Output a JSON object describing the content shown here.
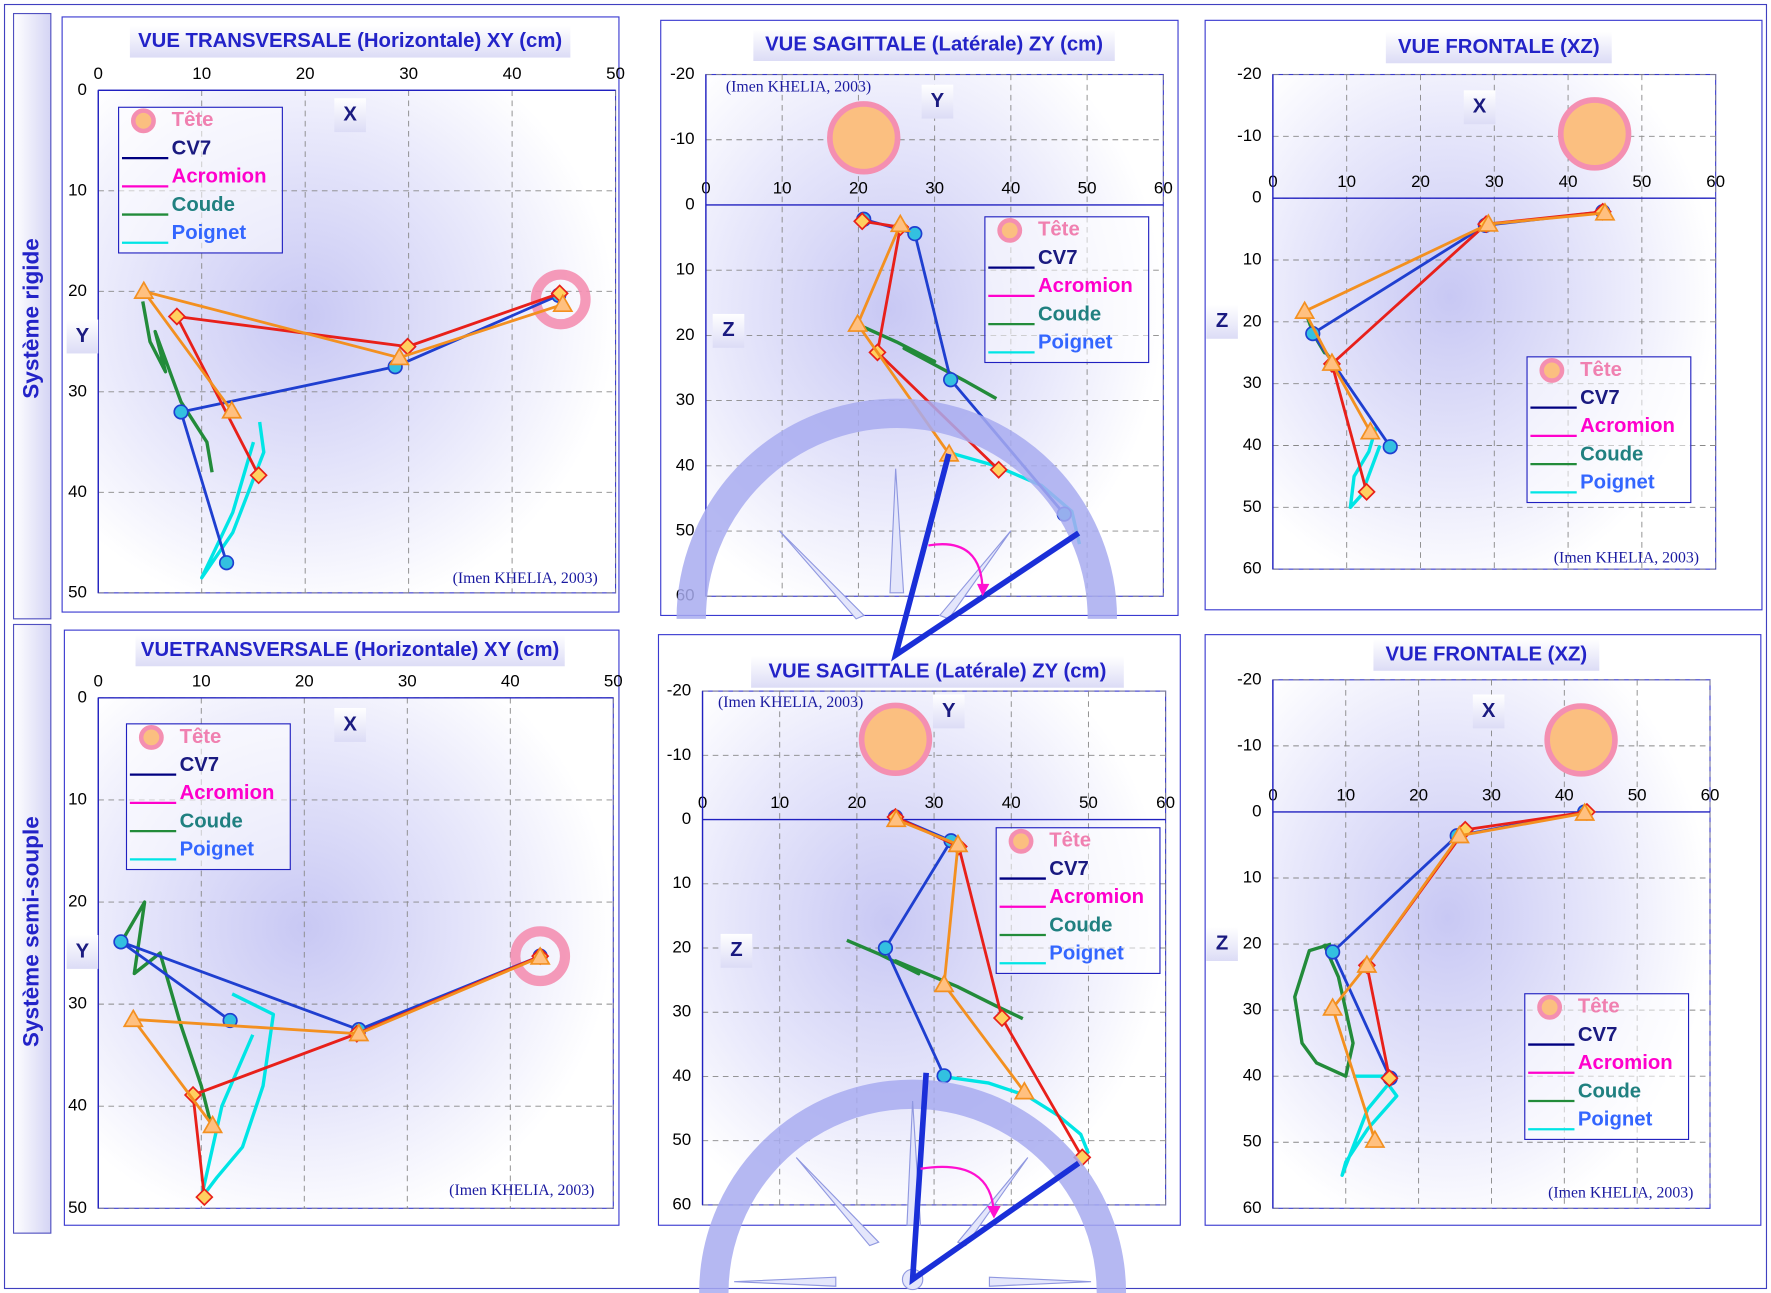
{
  "row_labels": [
    "Système rigide",
    "Système semi-souple"
  ],
  "chart_data": [
    {
      "type": "line",
      "title": "VUE TRANSVERSALE (Horizontale) XY (cm)",
      "xlabel": "X",
      "ylabel": "Y",
      "annotation": "(Imen KHELIA, 2003)",
      "xlim": [
        0,
        50
      ],
      "ylim": [
        0,
        50
      ],
      "xticks": [
        0,
        10,
        20,
        30,
        40,
        50
      ],
      "yticks": [
        0,
        10,
        20,
        30,
        40,
        50
      ],
      "y_reversed": true,
      "grid": true,
      "series": [
        {
          "name": "Tête",
          "color": "#f48fb1",
          "text_color": "#f080b0",
          "marker_fill": "#fbbf80",
          "x": [
            44.7
          ],
          "y": [
            20.8
          ]
        },
        {
          "name": "CV7",
          "color": "#000080",
          "text_color": "#1a1a80"
        },
        {
          "name": "Acromion",
          "color": "#ff00cc",
          "text_color": "#ff00cc"
        },
        {
          "name": "Coude",
          "color": "#228b3a",
          "text_color": "#208080",
          "x": [
            4.3,
            5.0,
            6.5,
            5.5,
            8.0,
            10.5,
            11.0
          ],
          "y": [
            21,
            25,
            28,
            24,
            31,
            35,
            38
          ]
        },
        {
          "name": "Poignet",
          "color": "#00e5e5",
          "text_color": "#3366ff",
          "x": [
            15.6,
            16,
            14.5,
            13,
            11,
            10,
            13,
            15
          ],
          "y": [
            33,
            36,
            40,
            44,
            47,
            48.5,
            42,
            35
          ]
        },
        {
          "color": "#1f3fd0",
          "marker": "circle",
          "marker_fill": "#33c0e0",
          "x": [
            12.4,
            8.0,
            28.7,
            44.5
          ],
          "y": [
            47.0,
            32.0,
            27.5,
            20.4
          ]
        },
        {
          "color": "#e8201a",
          "marker": "diamond",
          "marker_fill": "#ffd060",
          "x": [
            15.5,
            7.6,
            29.9,
            44.6
          ],
          "y": [
            38.3,
            22.5,
            25.5,
            20.2
          ]
        },
        {
          "color": "#f39020",
          "marker": "triangle",
          "marker_fill": "#ffc080",
          "x": [
            12.9,
            4.4,
            29.1,
            44.9
          ],
          "y": [
            31.9,
            20.0,
            26.6,
            21.3
          ]
        }
      ]
    },
    {
      "type": "line",
      "title": "VUE SAGITTALE (Latérale) ZY (cm)",
      "xlabel": "Y",
      "ylabel": "Z",
      "annotation": "(Imen KHELIA, 2003)",
      "xlim": [
        0,
        60
      ],
      "ylim": [
        -20,
        60
      ],
      "xticks": [
        0,
        10,
        20,
        30,
        40,
        50,
        60
      ],
      "yticks": [
        -20,
        -10,
        0,
        10,
        20,
        30,
        40,
        50,
        60
      ],
      "y_reversed": true,
      "grid": true,
      "series": [
        {
          "name": "Tête",
          "color": "#f48fb1",
          "text_color": "#f080b0",
          "marker_fill": "#fbbf80",
          "x": [
            20.7
          ],
          "y": [
            -10.3
          ]
        },
        {
          "name": "CV7",
          "color": "#000080",
          "text_color": "#1a1a80"
        },
        {
          "name": "Acromion",
          "color": "#ff00cc",
          "text_color": "#ff00cc"
        },
        {
          "name": "Coude",
          "color": "#228b3a",
          "text_color": "#208080",
          "x": [
            19.3,
            25,
            30,
            26,
            34,
            38.1
          ],
          "y": [
            18,
            21,
            24,
            22,
            27,
            29.7
          ]
        },
        {
          "name": "Poignet",
          "color": "#00e5e5",
          "text_color": "#3366ff",
          "x": [
            32,
            38,
            44,
            48,
            49
          ],
          "y": [
            38,
            40,
            43,
            47,
            52
          ]
        },
        {
          "color": "#1f3fd0",
          "marker": "circle",
          "marker_fill": "#33c0e0",
          "x": [
            20.7,
            27.4,
            32.1,
            47.0
          ],
          "y": [
            2.2,
            4.4,
            26.8,
            47.4
          ]
        },
        {
          "color": "#e8201a",
          "marker": "diamond",
          "marker_fill": "#ffd060",
          "x": [
            20.5,
            25.5,
            22.5,
            38.4
          ],
          "y": [
            2.5,
            3.4,
            22.6,
            40.6
          ]
        },
        {
          "color": "#f39020",
          "marker": "triangle",
          "marker_fill": "#ffc080",
          "x": [
            25.5,
            19.9,
            31.9
          ],
          "y": [
            3.0,
            18.3,
            38.2
          ]
        }
      ]
    },
    {
      "type": "line",
      "title": "VUE FRONTALE (XZ)",
      "xlabel": "X",
      "ylabel": "Z",
      "annotation": "(Imen KHELIA, 2003)",
      "xlim": [
        0,
        60
      ],
      "ylim": [
        -20,
        60
      ],
      "xticks": [
        0,
        10,
        20,
        30,
        40,
        50,
        60
      ],
      "yticks": [
        -20,
        -10,
        0,
        10,
        20,
        30,
        40,
        50,
        60
      ],
      "y_reversed": true,
      "grid": true,
      "series": [
        {
          "name": "Tête",
          "color": "#f48fb1",
          "text_color": "#f080b0",
          "marker_fill": "#fbbf80",
          "x": [
            43.6
          ],
          "y": [
            -10.4
          ]
        },
        {
          "name": "CV7",
          "color": "#000080",
          "text_color": "#1a1a80"
        },
        {
          "name": "Acromion",
          "color": "#ff00cc",
          "text_color": "#ff00cc"
        },
        {
          "name": "Coude",
          "color": "#228b3a",
          "text_color": "#208080",
          "x": [
            4.3,
            5.5,
            7,
            6,
            9
          ],
          "y": [
            18,
            22,
            25,
            23,
            28
          ]
        },
        {
          "name": "Poignet",
          "color": "#00e5e5",
          "text_color": "#3366ff",
          "x": [
            14,
            13,
            11,
            10.5,
            12,
            14.5
          ],
          "y": [
            37,
            41,
            45,
            50,
            48,
            40
          ]
        },
        {
          "color": "#1f3fd0",
          "marker": "circle",
          "marker_fill": "#33c0e0",
          "x": [
            44.7,
            28.8,
            5.4,
            15.9
          ],
          "y": [
            2.2,
            4.4,
            21.9,
            40.2
          ]
        },
        {
          "color": "#e8201a",
          "marker": "diamond",
          "marker_fill": "#ffd060",
          "x": [
            44.7,
            28.9,
            8.0,
            12.7
          ],
          "y": [
            2.2,
            4.2,
            26.8,
            47.5
          ]
        },
        {
          "color": "#f39020",
          "marker": "triangle",
          "marker_fill": "#ffc080",
          "x": [
            45,
            29.2,
            4.3,
            8.0,
            13.2
          ],
          "y": [
            2.4,
            4.2,
            18.3,
            26.7,
            37.8
          ]
        }
      ]
    },
    {
      "type": "line",
      "title": "VUETRANSVERSALE (Horizontale) XY (cm)",
      "xlabel": "X",
      "ylabel": "Y",
      "annotation": "(Imen KHELIA, 2003)",
      "xlim": [
        0,
        50
      ],
      "ylim": [
        0,
        50
      ],
      "xticks": [
        0,
        10,
        20,
        30,
        40,
        50
      ],
      "yticks": [
        0,
        10,
        20,
        30,
        40,
        50
      ],
      "y_reversed": true,
      "grid": true,
      "series": [
        {
          "name": "Tête",
          "color": "#f48fb1",
          "text_color": "#f080b0",
          "marker_fill": "#fbbf80",
          "x": [
            42.9
          ],
          "y": [
            25.3
          ]
        },
        {
          "name": "CV7",
          "color": "#000080",
          "text_color": "#1a1a80"
        },
        {
          "name": "Acromion",
          "color": "#ff00cc",
          "text_color": "#ff00cc"
        },
        {
          "name": "Coude",
          "color": "#228b3a",
          "text_color": "#208080",
          "x": [
            2.2,
            4.5,
            3.5,
            6,
            8,
            10,
            11
          ],
          "y": [
            24,
            20,
            27,
            25,
            32,
            38,
            42
          ]
        },
        {
          "name": "Poignet",
          "color": "#00e5e5",
          "text_color": "#3366ff",
          "x": [
            13,
            17,
            16,
            14,
            11.5,
            10,
            12,
            15
          ],
          "y": [
            29,
            31,
            38,
            44,
            47,
            49,
            40,
            33
          ]
        },
        {
          "color": "#1f3fd0",
          "marker": "circle",
          "marker_fill": "#33c0e0",
          "x": [
            12.8,
            2.2,
            25.3,
            42.9
          ],
          "y": [
            31.6,
            23.9,
            32.5,
            25.3
          ]
        },
        {
          "color": "#e8201a",
          "marker": "diamond",
          "marker_fill": "#ffd060",
          "x": [
            10.3,
            9.2,
            25.1,
            42.9
          ],
          "y": [
            48.9,
            38.9,
            32.9,
            25.3
          ]
        },
        {
          "color": "#f39020",
          "marker": "triangle",
          "marker_fill": "#ffc080",
          "x": [
            11.1,
            3.4,
            25.3,
            42.9
          ],
          "y": [
            41.9,
            31.5,
            32.9,
            25.4
          ]
        }
      ]
    },
    {
      "type": "line",
      "title": "VUE SAGITTALE (Latérale) ZY (cm)",
      "xlabel": "Y",
      "ylabel": "Z",
      "annotation": "(Imen KHELIA, 2003)",
      "xlim": [
        0,
        60
      ],
      "ylim": [
        -20,
        60
      ],
      "xticks": [
        0,
        10,
        20,
        30,
        40,
        50,
        60
      ],
      "yticks": [
        -20,
        -10,
        0,
        10,
        20,
        30,
        40,
        50,
        60
      ],
      "y_reversed": true,
      "grid": true,
      "series": [
        {
          "name": "Tête",
          "color": "#f48fb1",
          "text_color": "#f080b0",
          "marker_fill": "#fbbf80",
          "x": [
            25.0
          ],
          "y": [
            -12.5
          ]
        },
        {
          "name": "CV7",
          "color": "#000080",
          "text_color": "#1a1a80"
        },
        {
          "name": "Acromion",
          "color": "#ff00cc",
          "text_color": "#ff00cc"
        },
        {
          "name": "Coude",
          "color": "#228b3a",
          "text_color": "#208080",
          "x": [
            18.7,
            23,
            28,
            25,
            33,
            38,
            41.5
          ],
          "y": [
            18.8,
            21,
            24,
            22,
            26,
            29,
            31
          ]
        },
        {
          "name": "Poignet",
          "color": "#00e5e5",
          "text_color": "#3366ff",
          "x": [
            31,
            37,
            42,
            46,
            49,
            50
          ],
          "y": [
            40,
            41,
            43,
            46,
            49,
            52
          ]
        },
        {
          "color": "#1f3fd0",
          "marker": "circle",
          "marker_fill": "#33c0e0",
          "x": [
            25.0,
            32.2,
            23.7,
            31.3
          ],
          "y": [
            -0.4,
            3.3,
            20.0,
            39.9
          ]
        },
        {
          "color": "#e8201a",
          "marker": "diamond",
          "marker_fill": "#ffd060",
          "x": [
            25.0,
            33.2,
            38.8,
            49.2
          ],
          "y": [
            -0.4,
            4.2,
            30.9,
            52.6
          ]
        },
        {
          "color": "#f39020",
          "marker": "triangle",
          "marker_fill": "#ffc080",
          "x": [
            25.1,
            33.1,
            31.3,
            41.7
          ],
          "y": [
            0,
            3.9,
            25.7,
            42.4
          ]
        }
      ]
    },
    {
      "type": "line",
      "title": "VUE FRONTALE (XZ)",
      "xlabel": "X",
      "ylabel": "Z",
      "annotation": "(Imen KHELIA, 2003)",
      "xlim": [
        0,
        60
      ],
      "ylim": [
        -20,
        60
      ],
      "xticks": [
        0,
        10,
        20,
        30,
        40,
        50,
        60
      ],
      "yticks": [
        -20,
        -10,
        0,
        10,
        20,
        30,
        40,
        50,
        60
      ],
      "y_reversed": true,
      "grid": true,
      "series": [
        {
          "name": "Tête",
          "color": "#f48fb1",
          "text_color": "#f080b0",
          "marker_fill": "#fbbf80",
          "x": [
            42.3
          ],
          "y": [
            -10.9
          ]
        },
        {
          "name": "CV7",
          "color": "#000080",
          "text_color": "#1a1a80"
        },
        {
          "name": "Acromion",
          "color": "#ff00cc",
          "text_color": "#ff00cc"
        },
        {
          "name": "Coude",
          "color": "#228b3a",
          "text_color": "#208080",
          "x": [
            8,
            5,
            3,
            4,
            6,
            10,
            11,
            9,
            7
          ],
          "y": [
            20,
            21,
            28,
            35,
            38,
            40,
            35,
            25,
            20
          ]
        },
        {
          "name": "Poignet",
          "color": "#00e5e5",
          "text_color": "#3366ff",
          "x": [
            11,
            15,
            17,
            13,
            10,
            9.5,
            13,
            16
          ],
          "y": [
            40,
            40,
            43,
            48,
            53,
            55,
            45,
            41
          ]
        },
        {
          "color": "#1f3fd0",
          "marker": "circle",
          "marker_fill": "#33c0e0",
          "x": [
            42.8,
            25.3,
            8.2,
            16.1
          ],
          "y": [
            0,
            3.6,
            21.2,
            40.3
          ]
        },
        {
          "color": "#e8201a",
          "marker": "diamond",
          "marker_fill": "#ffd060",
          "x": [
            43.1,
            26.4,
            12.9,
            16.0
          ],
          "y": [
            0,
            2.7,
            23.2,
            40.3
          ]
        },
        {
          "color": "#f39020",
          "marker": "triangle",
          "marker_fill": "#ffc080",
          "x": [
            42.8,
            25.6,
            12.9,
            8.2,
            14.0
          ],
          "y": [
            0.2,
            3.6,
            23.2,
            29.7,
            49.7
          ]
        }
      ]
    }
  ]
}
